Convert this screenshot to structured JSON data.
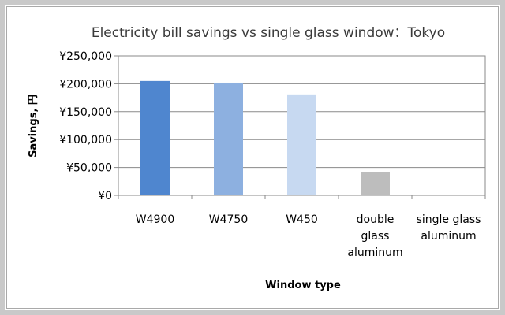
{
  "chart_data": {
    "type": "bar",
    "title": "Electricity bill savings vs single glass window：Tokyo",
    "xlabel": "Window type",
    "ylabel": "Savings, 円",
    "categories": [
      [
        "W4900"
      ],
      [
        "W4750"
      ],
      [
        "W450"
      ],
      [
        "double",
        "glass",
        "aluminum"
      ],
      [
        "single glass",
        "aluminum"
      ]
    ],
    "values": [
      205000,
      202000,
      181000,
      42000,
      0
    ],
    "bar_colors": [
      "#4f86cf",
      "#8db0e0",
      "#c7d9f1",
      "#bdbdbd",
      "#bdbdbd"
    ],
    "ylim": [
      0,
      250000
    ],
    "yticks": [
      {
        "value": 0,
        "label": "¥0"
      },
      {
        "value": 50000,
        "label": "¥50,000"
      },
      {
        "value": 100000,
        "label": "¥100,000"
      },
      {
        "value": 150000,
        "label": "¥150,000"
      },
      {
        "value": 200000,
        "label": "¥200,000"
      },
      {
        "value": 250000,
        "label": "¥250,000"
      }
    ],
    "grid": true,
    "legend": "none"
  }
}
